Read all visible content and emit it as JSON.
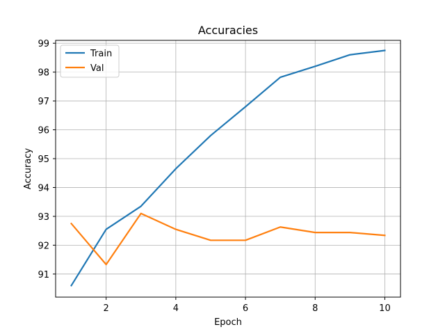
{
  "chart_data": {
    "type": "line",
    "title": "Accuracies",
    "xlabel": "Epoch",
    "ylabel": "Accuracy",
    "x": [
      1,
      2,
      3,
      4,
      5,
      6,
      7,
      8,
      9,
      10
    ],
    "xlim": [
      0.55,
      10.45
    ],
    "ylim": [
      90.2,
      99.1
    ],
    "xticks": [
      2,
      4,
      6,
      8,
      10
    ],
    "yticks": [
      91,
      92,
      93,
      94,
      95,
      96,
      97,
      98,
      99
    ],
    "grid": true,
    "legend_position": "top-left",
    "series": [
      {
        "name": "Train",
        "color": "#1f77b4",
        "values": [
          90.6,
          92.55,
          93.35,
          94.65,
          95.8,
          96.8,
          97.82,
          98.2,
          98.6,
          98.75
        ]
      },
      {
        "name": "Val",
        "color": "#ff7f0e",
        "values": [
          92.75,
          91.33,
          93.1,
          92.55,
          92.17,
          92.17,
          92.63,
          92.44,
          92.44,
          92.34
        ]
      }
    ]
  }
}
